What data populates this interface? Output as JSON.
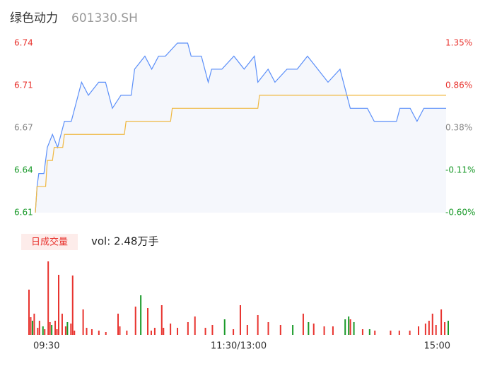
{
  "chart_data": [
    {
      "type": "line",
      "title": "绿色动力",
      "subtitle": "601330.SH",
      "xlim": [
        0,
        240
      ],
      "ylim": [
        6.61,
        6.74
      ],
      "yticks": [
        {
          "value": 6.74,
          "label": "6.74",
          "color": "#e8332e"
        },
        {
          "value": 6.7075,
          "label": "6.71",
          "color": "#e8332e"
        },
        {
          "value": 6.675,
          "label": "6.67",
          "color": "#888888"
        },
        {
          "value": 6.6425,
          "label": "6.64",
          "color": "#1a9a2a"
        },
        {
          "value": 6.61,
          "label": "6.61",
          "color": "#1a9a2a"
        }
      ],
      "y2lim": [
        -0.6,
        1.35
      ],
      "y2ticks": [
        {
          "value": 1.35,
          "label": "1.35%",
          "color": "#e8332e"
        },
        {
          "value": 0.8625,
          "label": "0.86%",
          "color": "#e8332e"
        },
        {
          "value": 0.375,
          "label": "0.38%",
          "color": "#888888"
        },
        {
          "value": -0.1125,
          "label": "-0.11%",
          "color": "#1a9a2a"
        },
        {
          "value": -0.6,
          "label": "-0.60%",
          "color": "#1a9a2a"
        }
      ],
      "area_color": "#f5f7fc",
      "series": [
        {
          "color": "#5b8ff9",
          "x": [
            0,
            1,
            2,
            5,
            7,
            10,
            13,
            17,
            21,
            25,
            27,
            31,
            37,
            41,
            45,
            50,
            56,
            58,
            64,
            68,
            72,
            76,
            83,
            89,
            91,
            97,
            101,
            103,
            109,
            116,
            122,
            128,
            130,
            136,
            140,
            147,
            153,
            159,
            165,
            171,
            178,
            184,
            190,
            194,
            198,
            204,
            211,
            213,
            219,
            223,
            227,
            231,
            238,
            240
          ],
          "values": [
            6.61,
            6.63,
            6.64,
            6.64,
            6.66,
            6.67,
            6.66,
            6.68,
            6.68,
            6.7,
            6.71,
            6.7,
            6.71,
            6.71,
            6.69,
            6.7,
            6.7,
            6.72,
            6.73,
            6.72,
            6.73,
            6.73,
            6.74,
            6.74,
            6.73,
            6.73,
            6.71,
            6.72,
            6.72,
            6.73,
            6.72,
            6.73,
            6.71,
            6.72,
            6.71,
            6.72,
            6.72,
            6.73,
            6.72,
            6.71,
            6.72,
            6.69,
            6.69,
            6.69,
            6.68,
            6.68,
            6.68,
            6.69,
            6.69,
            6.68,
            6.69,
            6.69,
            6.69,
            6.69
          ]
        },
        {
          "color": "#f0b840",
          "x": [
            0,
            1,
            6,
            7,
            10,
            11,
            16,
            17,
            52,
            53,
            79,
            80,
            130,
            131,
            240
          ],
          "values": [
            6.61,
            6.63,
            6.63,
            6.65,
            6.65,
            6.66,
            6.66,
            6.67,
            6.67,
            6.68,
            6.68,
            6.69,
            6.69,
            6.7,
            6.7
          ]
        }
      ]
    },
    {
      "type": "bar",
      "title": "日成交量",
      "annotation": "vol: 2.48万手",
      "xlim": [
        0,
        240
      ],
      "ylim": [
        0,
        1040
      ],
      "xticks": [
        {
          "value": 0,
          "label": "09:30"
        },
        {
          "value": 120,
          "label": "11:30/13:00"
        },
        {
          "value": 240,
          "label": "15:00"
        }
      ],
      "x": [
        0,
        1,
        2,
        3,
        5,
        6,
        8,
        9,
        11,
        12,
        13,
        15,
        16,
        17,
        19,
        21,
        22,
        24,
        25,
        26,
        31,
        33,
        36,
        40,
        44,
        51,
        52,
        56,
        61,
        64,
        68,
        70,
        72,
        76,
        77,
        81,
        85,
        91,
        95,
        101,
        105,
        112,
        117,
        121,
        125,
        131,
        137,
        144,
        151,
        157,
        160,
        163,
        169,
        174,
        181,
        183,
        184,
        186,
        191,
        195,
        198,
        207,
        212,
        218,
        223,
        227,
        229,
        231,
        233,
        236,
        238,
        240
      ],
      "values": [
        640,
        250,
        200,
        300,
        100,
        200,
        120,
        80,
        1040,
        180,
        140,
        200,
        80,
        850,
        300,
        120,
        180,
        160,
        840,
        60,
        360,
        100,
        80,
        60,
        40,
        300,
        120,
        60,
        400,
        560,
        380,
        60,
        100,
        420,
        100,
        160,
        100,
        180,
        260,
        100,
        140,
        220,
        80,
        420,
        140,
        280,
        180,
        140,
        140,
        300,
        180,
        160,
        120,
        120,
        220,
        260,
        220,
        180,
        80,
        80,
        60,
        60,
        60,
        60,
        120,
        160,
        200,
        300,
        140,
        360,
        180,
        200
      ],
      "colors": [
        "#e8332e",
        "#e8332e",
        "#1a9a2a",
        "#e8332e",
        "#e8332e",
        "#e8332e",
        "#1a9a2a",
        "#e8332e",
        "#e8332e",
        "#e8332e",
        "#1a9a2a",
        "#e8332e",
        "#e8332e",
        "#e8332e",
        "#e8332e",
        "#e8332e",
        "#1a9a2a",
        "#e8332e",
        "#e8332e",
        "#e8332e",
        "#e8332e",
        "#e8332e",
        "#e8332e",
        "#e8332e",
        "#e8332e",
        "#e8332e",
        "#e8332e",
        "#e8332e",
        "#e8332e",
        "#1a9a2a",
        "#e8332e",
        "#e8332e",
        "#e8332e",
        "#e8332e",
        "#e8332e",
        "#e8332e",
        "#e8332e",
        "#e8332e",
        "#e8332e",
        "#e8332e",
        "#e8332e",
        "#1a9a2a",
        "#e8332e",
        "#e8332e",
        "#e8332e",
        "#e8332e",
        "#e8332e",
        "#e8332e",
        "#1a9a2a",
        "#e8332e",
        "#1a9a2a",
        "#e8332e",
        "#e8332e",
        "#e8332e",
        "#1a9a2a",
        "#1a9a2a",
        "#e8332e",
        "#1a9a2a",
        "#e8332e",
        "#1a9a2a",
        "#e8332e",
        "#e8332e",
        "#e8332e",
        "#e8332e",
        "#e8332e",
        "#e8332e",
        "#e8332e",
        "#e8332e",
        "#e8332e",
        "#e8332e",
        "#e8332e",
        "#1a9a2a"
      ]
    }
  ]
}
